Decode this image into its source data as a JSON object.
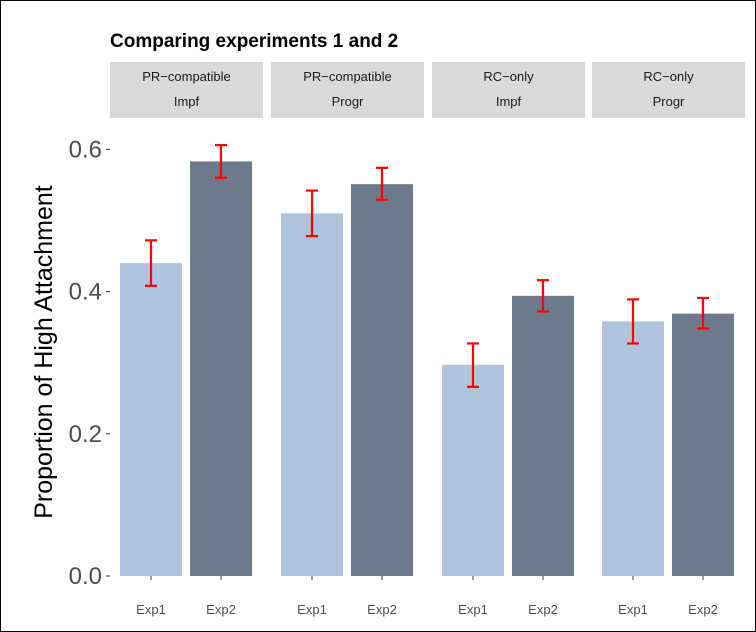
{
  "chart_data": {
    "type": "bar",
    "title": "Comparing experiments 1 and 2",
    "xlabel": "",
    "ylabel": "Proportion of High Attachment",
    "ylim": [
      0,
      0.63
    ],
    "yticks": [
      0.0,
      0.2,
      0.4,
      0.6
    ],
    "ytick_labels": [
      "0.0",
      "0.2",
      "0.4",
      "0.6"
    ],
    "grid": false,
    "panels": [
      {
        "strip": [
          "PR−compatible",
          "Impf"
        ],
        "categories": [
          "Exp1",
          "Exp2"
        ],
        "values": [
          0.44,
          0.583
        ],
        "error_low": [
          0.408,
          0.56
        ],
        "error_high": [
          0.472,
          0.606
        ]
      },
      {
        "strip": [
          "PR−compatible",
          "Progr"
        ],
        "categories": [
          "Exp1",
          "Exp2"
        ],
        "values": [
          0.51,
          0.551
        ],
        "error_low": [
          0.478,
          0.529
        ],
        "error_high": [
          0.542,
          0.574
        ]
      },
      {
        "strip": [
          "RC−only",
          "Impf"
        ],
        "categories": [
          "Exp1",
          "Exp2"
        ],
        "values": [
          0.297,
          0.394
        ],
        "error_low": [
          0.266,
          0.372
        ],
        "error_high": [
          0.327,
          0.416
        ]
      },
      {
        "strip": [
          "RC−only",
          "Progr"
        ],
        "categories": [
          "Exp1",
          "Exp2"
        ],
        "values": [
          0.358,
          0.369
        ],
        "error_low": [
          0.327,
          0.348
        ],
        "error_high": [
          0.389,
          0.391
        ]
      }
    ],
    "colors": {
      "Exp1": "#b0c4de",
      "Exp2": "#6c7a89",
      "error_bar": "#ff0000",
      "strip_bg": "#d9d9d9"
    }
  }
}
